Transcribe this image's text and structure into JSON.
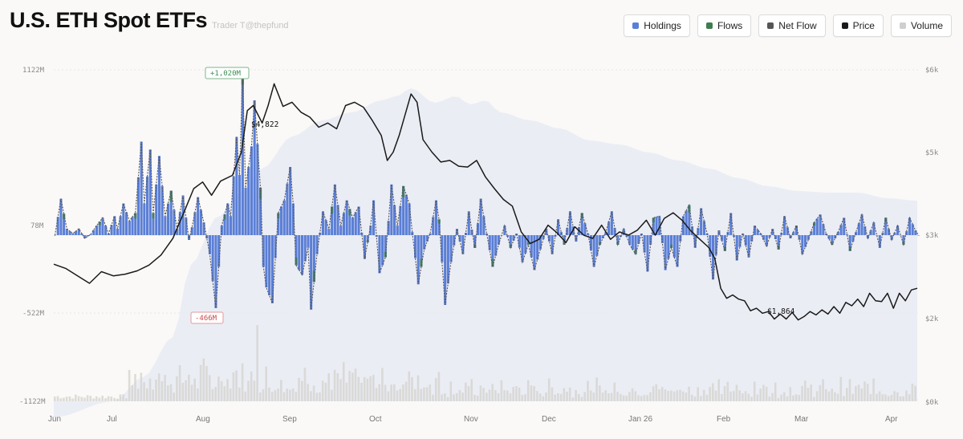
{
  "header": {
    "title": "U.S. ETH Spot ETFs",
    "subtitle": "Trader T@thepfund"
  },
  "legend": [
    {
      "key": "holdings",
      "label": "Holdings",
      "color": "#5b7fd6"
    },
    {
      "key": "flows",
      "label": "Flows",
      "color": "#3e7d4f"
    },
    {
      "key": "netflow",
      "label": "Net Flow",
      "color": "#555555"
    },
    {
      "key": "price",
      "label": "Price",
      "color": "#1a1a1a"
    },
    {
      "key": "volume",
      "label": "Volume",
      "color": "#cfcfcf"
    }
  ],
  "chart_data": {
    "type": "bar",
    "xlabels": [
      "Jun",
      "Jul",
      "Aug",
      "Sep",
      "Oct",
      "Nov",
      "Dec",
      "Jan 26",
      "Feb",
      "Mar",
      "Apr"
    ],
    "y_left_ticks": [
      "1122M",
      "78M",
      "-522M",
      "-1122M"
    ],
    "y_right_ticks": [
      "$6k",
      "$5k",
      "$3k",
      "$2k",
      "$0k"
    ],
    "annotations": {
      "max_flow": "+1,020M",
      "min_flow": "-466M",
      "price_peak": "$4,822",
      "price_low": "$1,864"
    },
    "colors": {
      "holdings": "#5b7fd6",
      "flows": "#3e7d4f",
      "netflow": "#555555",
      "price": "#1a1a1a",
      "volume": "#d3d1cc",
      "holdings_area": "#e8ebf4",
      "positive": "#3e8e55",
      "negative": "#cc4a4a"
    },
    "flow_keypoints": [
      [
        0,
        0
      ],
      [
        2,
        230
      ],
      [
        4,
        40
      ],
      [
        6,
        10
      ],
      [
        8,
        40
      ],
      [
        10,
        -20
      ],
      [
        12,
        5
      ],
      [
        14,
        60
      ],
      [
        16,
        110
      ],
      [
        18,
        10
      ],
      [
        20,
        120
      ],
      [
        21,
        40
      ],
      [
        23,
        200
      ],
      [
        25,
        90
      ],
      [
        27,
        140
      ],
      [
        29,
        590
      ],
      [
        30,
        200
      ],
      [
        32,
        540
      ],
      [
        33,
        140
      ],
      [
        35,
        500
      ],
      [
        37,
        120
      ],
      [
        39,
        280
      ],
      [
        41,
        40
      ],
      [
        43,
        250
      ],
      [
        45,
        -30
      ],
      [
        46,
        50
      ],
      [
        48,
        240
      ],
      [
        50,
        80
      ],
      [
        52,
        -120
      ],
      [
        54,
        -460
      ],
      [
        56,
        60
      ],
      [
        58,
        200
      ],
      [
        59,
        120
      ],
      [
        61,
        620
      ],
      [
        62,
        380
      ],
      [
        63,
        1020
      ],
      [
        64,
        300
      ],
      [
        66,
        560
      ],
      [
        67,
        850
      ],
      [
        69,
        300
      ],
      [
        70,
        -200
      ],
      [
        71,
        -330
      ],
      [
        73,
        -430
      ],
      [
        75,
        140
      ],
      [
        77,
        220
      ],
      [
        79,
        430
      ],
      [
        80,
        200
      ],
      [
        81,
        -190
      ],
      [
        83,
        -250
      ],
      [
        85,
        -80
      ],
      [
        86,
        -470
      ],
      [
        88,
        -120
      ],
      [
        90,
        150
      ],
      [
        92,
        40
      ],
      [
        94,
        320
      ],
      [
        96,
        60
      ],
      [
        98,
        220
      ],
      [
        100,
        110
      ],
      [
        102,
        180
      ],
      [
        104,
        -150
      ],
      [
        106,
        60
      ],
      [
        107,
        220
      ],
      [
        109,
        -240
      ],
      [
        111,
        -140
      ],
      [
        113,
        320
      ],
      [
        115,
        60
      ],
      [
        117,
        310
      ],
      [
        119,
        200
      ],
      [
        120,
        20
      ],
      [
        122,
        -310
      ],
      [
        124,
        -90
      ],
      [
        126,
        10
      ],
      [
        128,
        220
      ],
      [
        129,
        100
      ],
      [
        131,
        -440
      ],
      [
        133,
        -170
      ],
      [
        135,
        40
      ],
      [
        137,
        -120
      ],
      [
        139,
        150
      ],
      [
        141,
        -80
      ],
      [
        143,
        230
      ],
      [
        145,
        10
      ],
      [
        147,
        -200
      ],
      [
        149,
        -60
      ],
      [
        151,
        60
      ],
      [
        153,
        -80
      ],
      [
        155,
        10
      ],
      [
        157,
        -170
      ],
      [
        159,
        -60
      ],
      [
        161,
        -220
      ],
      [
        163,
        -90
      ],
      [
        165,
        40
      ],
      [
        167,
        -120
      ],
      [
        169,
        100
      ],
      [
        171,
        -60
      ],
      [
        173,
        150
      ],
      [
        175,
        -40
      ],
      [
        177,
        140
      ],
      [
        179,
        10
      ],
      [
        181,
        -200
      ],
      [
        183,
        -60
      ],
      [
        185,
        20
      ],
      [
        187,
        150
      ],
      [
        189,
        -60
      ],
      [
        191,
        40
      ],
      [
        193,
        -60
      ],
      [
        195,
        -120
      ],
      [
        197,
        10
      ],
      [
        199,
        -230
      ],
      [
        201,
        110
      ],
      [
        203,
        120
      ],
      [
        205,
        -220
      ],
      [
        207,
        -80
      ],
      [
        209,
        -200
      ],
      [
        211,
        120
      ],
      [
        213,
        190
      ],
      [
        215,
        -80
      ],
      [
        217,
        170
      ],
      [
        219,
        10
      ],
      [
        221,
        -280
      ],
      [
        223,
        30
      ],
      [
        225,
        -100
      ],
      [
        227,
        140
      ],
      [
        229,
        -160
      ],
      [
        231,
        10
      ],
      [
        233,
        -140
      ],
      [
        235,
        60
      ],
      [
        237,
        10
      ],
      [
        239,
        -70
      ],
      [
        241,
        40
      ],
      [
        243,
        -90
      ],
      [
        245,
        120
      ],
      [
        247,
        -20
      ],
      [
        249,
        60
      ],
      [
        251,
        -120
      ],
      [
        253,
        -30
      ],
      [
        255,
        80
      ],
      [
        257,
        130
      ],
      [
        259,
        10
      ],
      [
        261,
        -60
      ],
      [
        263,
        20
      ],
      [
        265,
        110
      ],
      [
        267,
        -100
      ],
      [
        269,
        20
      ],
      [
        271,
        130
      ],
      [
        273,
        -20
      ],
      [
        275,
        80
      ],
      [
        277,
        -80
      ],
      [
        279,
        110
      ],
      [
        281,
        -30
      ],
      [
        283,
        60
      ],
      [
        285,
        -60
      ],
      [
        287,
        110
      ],
      [
        289,
        30
      ],
      [
        290,
        0
      ]
    ],
    "price_keypoints": [
      [
        0,
        2650
      ],
      [
        4,
        2600
      ],
      [
        8,
        2510
      ],
      [
        12,
        2420
      ],
      [
        16,
        2560
      ],
      [
        20,
        2510
      ],
      [
        24,
        2530
      ],
      [
        28,
        2570
      ],
      [
        32,
        2640
      ],
      [
        36,
        2760
      ],
      [
        40,
        2960
      ],
      [
        44,
        3300
      ],
      [
        47,
        3560
      ],
      [
        50,
        3640
      ],
      [
        53,
        3480
      ],
      [
        56,
        3650
      ],
      [
        60,
        3720
      ],
      [
        63,
        4000
      ],
      [
        65,
        4500
      ],
      [
        67,
        4560
      ],
      [
        70,
        4350
      ],
      [
        72,
        4560
      ],
      [
        74,
        4822
      ],
      [
        77,
        4550
      ],
      [
        80,
        4600
      ],
      [
        83,
        4480
      ],
      [
        86,
        4420
      ],
      [
        89,
        4300
      ],
      [
        92,
        4350
      ],
      [
        95,
        4280
      ],
      [
        98,
        4560
      ],
      [
        101,
        4600
      ],
      [
        104,
        4540
      ],
      [
        107,
        4380
      ],
      [
        110,
        4200
      ],
      [
        112,
        3900
      ],
      [
        114,
        4000
      ],
      [
        116,
        4200
      ],
      [
        118,
        4450
      ],
      [
        120,
        4700
      ],
      [
        122,
        4600
      ],
      [
        124,
        4150
      ],
      [
        127,
        4000
      ],
      [
        130,
        3880
      ],
      [
        133,
        3900
      ],
      [
        136,
        3830
      ],
      [
        139,
        3820
      ],
      [
        142,
        3900
      ],
      [
        145,
        3700
      ],
      [
        148,
        3560
      ],
      [
        151,
        3430
      ],
      [
        154,
        3350
      ],
      [
        157,
        3040
      ],
      [
        160,
        2900
      ],
      [
        163,
        2950
      ],
      [
        166,
        3120
      ],
      [
        169,
        3030
      ],
      [
        172,
        2910
      ],
      [
        175,
        3100
      ],
      [
        178,
        3000
      ],
      [
        181,
        2960
      ],
      [
        184,
        3120
      ],
      [
        187,
        2950
      ],
      [
        190,
        3040
      ],
      [
        193,
        3000
      ],
      [
        196,
        3060
      ],
      [
        199,
        3180
      ],
      [
        202,
        3000
      ],
      [
        205,
        3200
      ],
      [
        208,
        3270
      ],
      [
        211,
        3180
      ],
      [
        214,
        3050
      ],
      [
        217,
        2950
      ],
      [
        220,
        2850
      ],
      [
        222,
        2720
      ],
      [
        224,
        2360
      ],
      [
        226,
        2240
      ],
      [
        228,
        2280
      ],
      [
        230,
        2230
      ],
      [
        232,
        2210
      ],
      [
        234,
        2090
      ],
      [
        236,
        2120
      ],
      [
        238,
        2060
      ],
      [
        240,
        2080
      ],
      [
        242,
        1990
      ],
      [
        244,
        2050
      ],
      [
        246,
        1990
      ],
      [
        248,
        2070
      ],
      [
        250,
        1980
      ],
      [
        252,
        2020
      ],
      [
        254,
        2080
      ],
      [
        256,
        2040
      ],
      [
        258,
        2100
      ],
      [
        260,
        2050
      ],
      [
        262,
        2140
      ],
      [
        264,
        2060
      ],
      [
        266,
        2190
      ],
      [
        268,
        2150
      ],
      [
        270,
        2230
      ],
      [
        272,
        2140
      ],
      [
        274,
        2300
      ],
      [
        276,
        2210
      ],
      [
        278,
        2200
      ],
      [
        280,
        2300
      ],
      [
        282,
        2120
      ],
      [
        284,
        2300
      ],
      [
        286,
        2210
      ],
      [
        288,
        2340
      ],
      [
        290,
        2360
      ]
    ]
  }
}
